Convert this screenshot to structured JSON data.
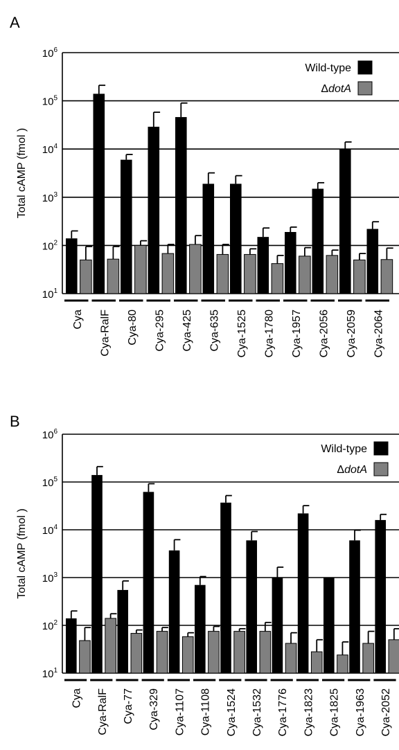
{
  "chart_data": [
    {
      "panel_label": "A",
      "type": "bar",
      "ylabel": "Total  cAMP  (fmol )",
      "yscale": "log",
      "ylim": [
        10,
        1000000
      ],
      "ytick_bases": [
        "10",
        "10",
        "10",
        "10",
        "10",
        "10"
      ],
      "ytick_exponents": [
        "1",
        "2",
        "3",
        "4",
        "5",
        "6"
      ],
      "grid": "horizontal",
      "legend_position": "top-right",
      "categories": [
        "Cya",
        "Cya-RalF",
        "Cya-80",
        "Cya-295",
        "Cya-425",
        "Cya-635",
        "Cya-1525",
        "Cya-1780",
        "Cya-1957",
        "Cya-2056",
        "Cya-2059",
        "Cya-2064"
      ],
      "series": [
        {
          "name": "Wild-type",
          "color": "#000000",
          "values": [
            140,
            140000,
            6000,
            29000,
            46000,
            1900,
            1900,
            150,
            190,
            1500,
            10000,
            220
          ],
          "errors": [
            200,
            210000,
            7700,
            58000,
            90000,
            3200,
            2800,
            230,
            240,
            2000,
            14000,
            310
          ]
        },
        {
          "name": "ΔdotA",
          "legend_prefix": "Δ",
          "legend_italic": "dotA",
          "color": "#808080",
          "values": [
            50,
            52,
            100,
            68,
            105,
            65,
            65,
            42,
            60,
            62,
            50,
            51
          ],
          "errors": [
            95,
            95,
            125,
            105,
            160,
            105,
            85,
            62,
            90,
            80,
            68,
            88
          ]
        }
      ]
    },
    {
      "panel_label": "B",
      "type": "bar",
      "ylabel": "Total  cAMP  (fmol )",
      "yscale": "log",
      "ylim": [
        10,
        1000000
      ],
      "ytick_bases": [
        "10",
        "10",
        "10",
        "10",
        "10",
        "10"
      ],
      "ytick_exponents": [
        "1",
        "2",
        "3",
        "4",
        "5",
        "6"
      ],
      "grid": "horizontal",
      "legend_position": "top-right",
      "categories": [
        "Cya",
        "Cya-RalF",
        "Cya-77",
        "Cya-329",
        "Cya-1107",
        "Cya-1108",
        "Cya-1524",
        "Cya-1532",
        "Cya-1776",
        "Cya-1823",
        "Cya-1825",
        "Cya-1963",
        "Cya-2052"
      ],
      "series": [
        {
          "name": "Wild-type",
          "color": "#000000",
          "values": [
            140,
            140000,
            550,
            62000,
            3700,
            700,
            37000,
            6000,
            1000,
            22000,
            1000,
            6000,
            16000
          ],
          "errors": [
            200,
            210000,
            850,
            92000,
            6200,
            1050,
            52000,
            9200,
            1650,
            32000,
            1050,
            9800,
            21000
          ],
          "no_error": [
            10
          ]
        },
        {
          "name": "ΔdotA",
          "legend_prefix": "Δ",
          "legend_italic": "dotA",
          "color": "#808080",
          "values": [
            48,
            140,
            68,
            75,
            58,
            75,
            75,
            75,
            42,
            28,
            24,
            42,
            50
          ],
          "errors": [
            90,
            175,
            80,
            90,
            70,
            95,
            85,
            115,
            70,
            50,
            45,
            75,
            85
          ]
        }
      ]
    }
  ]
}
